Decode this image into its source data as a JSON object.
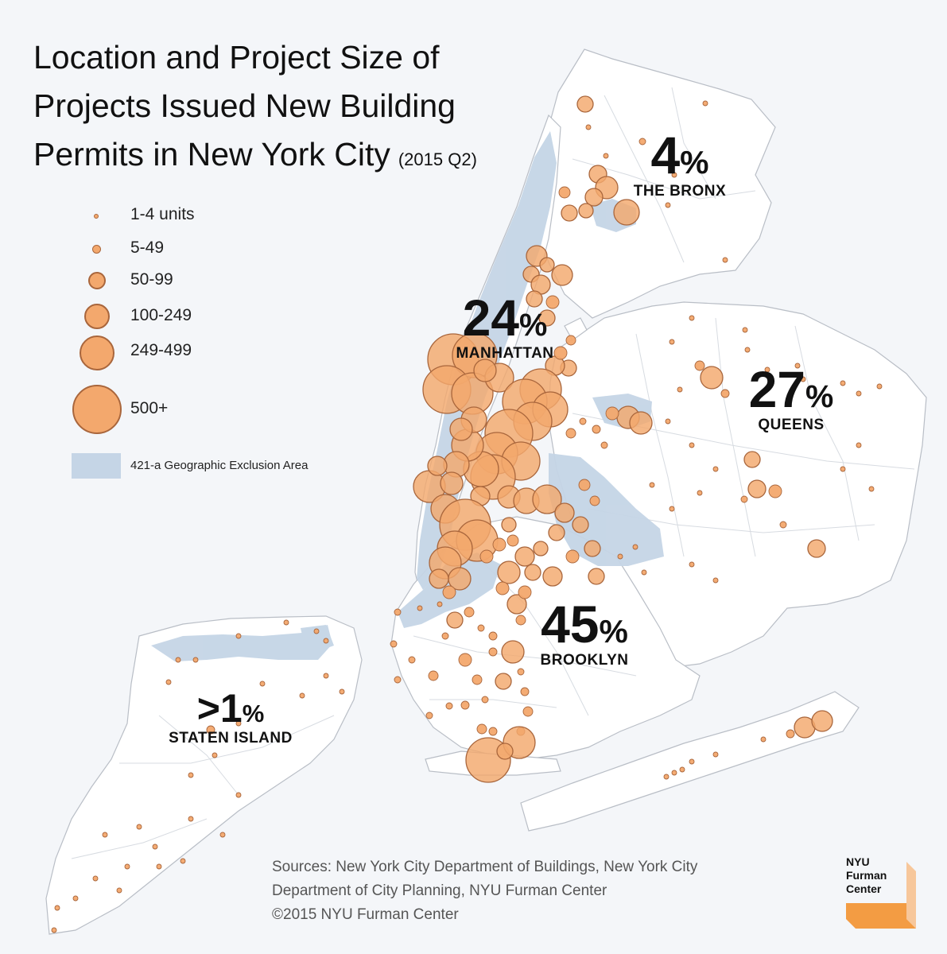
{
  "title": {
    "line1": "Location and Project Size of",
    "line2": "Projects Issued New Building",
    "line3": "Permits in New York City",
    "sub": "(2015 Q2)"
  },
  "legend": {
    "sizes": [
      {
        "label": "1-4 units"
      },
      {
        "label": "5-49"
      },
      {
        "label": "50-99"
      },
      {
        "label": "100-249"
      },
      {
        "label": "249-499"
      },
      {
        "label": "500+"
      }
    ],
    "exclusion_label": "421-a Geographic Exclusion Area"
  },
  "boroughs": {
    "bronx": {
      "pct": "4",
      "name": "THE BRONX"
    },
    "manhattan": {
      "pct": "24",
      "name": "MANHATTAN"
    },
    "queens": {
      "pct": "27",
      "name": "QUEENS"
    },
    "brooklyn": {
      "pct": "45",
      "name": "BROOKLYN"
    },
    "staten_island": {
      "pct": ">1",
      "name": "STATEN ISLAND"
    }
  },
  "percent_sign": "%",
  "sources": {
    "line1": "Sources:  New York City Department of Buildings, New York City",
    "line2": "Department of City Planning, NYU Furman Center",
    "line3": "©2015 NYU Furman Center"
  },
  "logo": {
    "line1": "NYU",
    "line2": "Furman",
    "line3": "Center"
  },
  "colors": {
    "background": "#f4f6f9",
    "land": "#ffffff",
    "border": "#c9cdd4",
    "exclusion_area": "#c5d5e6",
    "bubble_fill": "#f3a86d",
    "bubble_stroke": "#a9663c",
    "logo_accent": "#f39c43"
  }
}
